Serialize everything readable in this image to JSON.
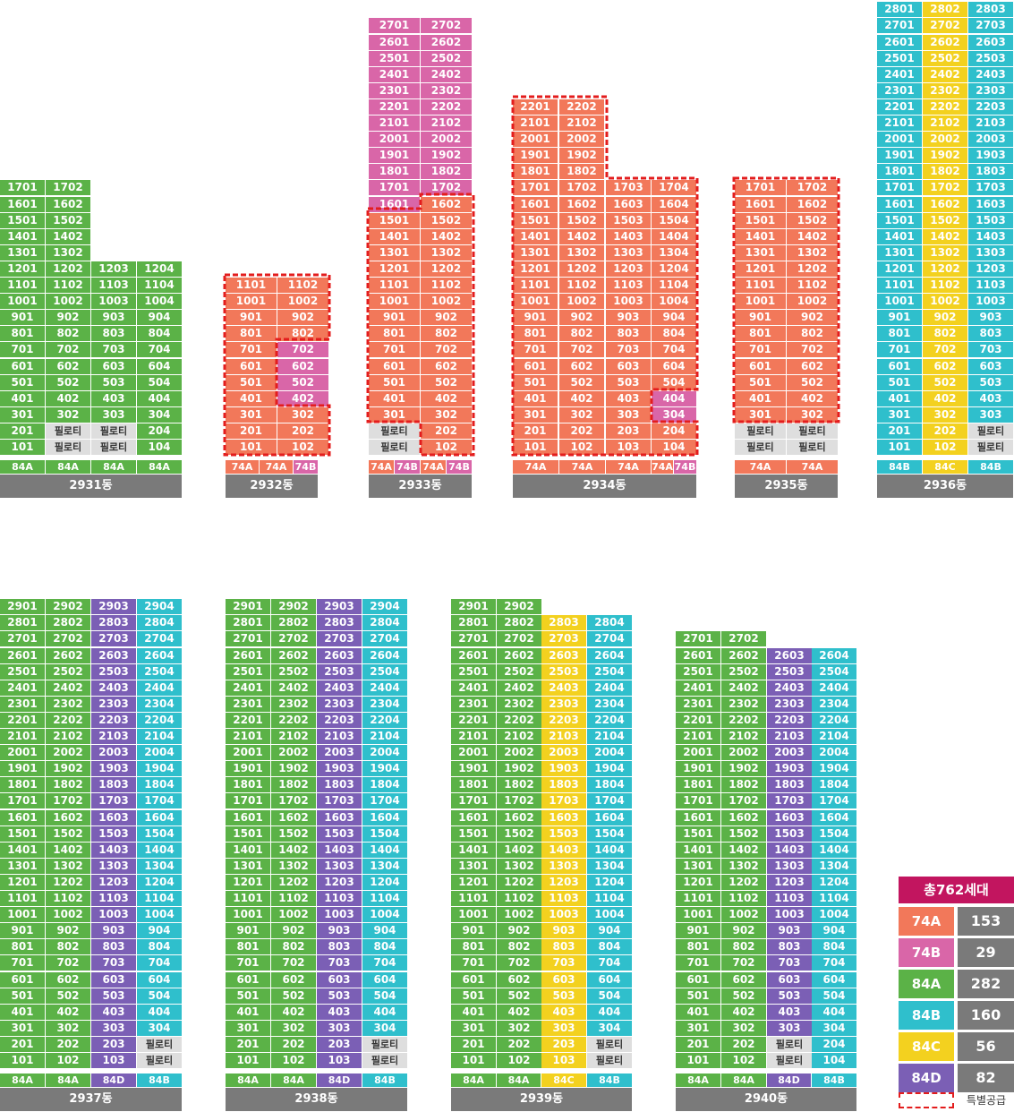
{
  "colors": {
    "74A": "#f2785a",
    "74B": "#d966a8",
    "84A": "#5bb247",
    "84B": "#2fbfcc",
    "84C": "#f3d11f",
    "84D": "#7b5fb5",
    "piloti": "#dedede",
    "building_label": "#7a7a7a",
    "total_title": "#c2155f",
    "special_border": "#e31d1d"
  },
  "piloti_text": "필로티",
  "buildings": [
    {
      "name": "2931동",
      "types": [
        "84A",
        "84A",
        "84A",
        "84A"
      ],
      "columns": [
        {
          "type": "84A",
          "floors": 17,
          "lines": "01",
          "piloti": []
        },
        {
          "type": "84A",
          "floors": 17,
          "lines": "02",
          "piloti": [
            1,
            2
          ]
        },
        {
          "type": "84A",
          "floors": 12,
          "lines": "03",
          "piloti": [
            1,
            2
          ]
        },
        {
          "type": "84A",
          "floors": 12,
          "lines": "04",
          "piloti": []
        }
      ]
    },
    {
      "name": "2932동",
      "types": [
        "74A",
        "74A",
        "74B"
      ],
      "columns": [
        {
          "type": "74A",
          "floors": 11,
          "lines": "01",
          "piloti": []
        },
        {
          "type": "74A",
          "floors": 11,
          "lines": "02",
          "piloti": [],
          "override": {
            "4": "74B",
            "5": "74B",
            "6": "74B",
            "7": "74B"
          }
        }
      ]
    },
    {
      "name": "2933동",
      "types": [
        "74A",
        "74B",
        "74A",
        "74B"
      ],
      "columns": [
        {
          "type": "74A",
          "floors": 27,
          "lines": "01",
          "piloti": [
            1,
            2
          ],
          "override": {
            "16": "74B",
            "17": "74B",
            "18": "74B",
            "19": "74B",
            "20": "74B",
            "21": "74B",
            "22": "74B",
            "23": "74B",
            "24": "74B",
            "25": "74B",
            "26": "74B",
            "27": "74B"
          }
        },
        {
          "type": "74A",
          "floors": 27,
          "lines": "02",
          "piloti": [],
          "override": {
            "17": "74B",
            "18": "74B",
            "19": "74B",
            "20": "74B",
            "21": "74B",
            "22": "74B",
            "23": "74B",
            "24": "74B",
            "25": "74B",
            "26": "74B",
            "27": "74B"
          }
        }
      ]
    },
    {
      "name": "2934동",
      "types": [
        "74A",
        "74A",
        "74A",
        "74A",
        "74B"
      ],
      "columns": [
        {
          "type": "74A",
          "floors": 22,
          "lines": "01",
          "piloti": []
        },
        {
          "type": "74A",
          "floors": 22,
          "lines": "02",
          "piloti": []
        },
        {
          "type": "74A",
          "floors": 17,
          "lines": "03",
          "piloti": []
        },
        {
          "type": "74A",
          "floors": 17,
          "lines": "04",
          "piloti": [],
          "override": {
            "3": "74B",
            "4": "74B"
          }
        }
      ]
    },
    {
      "name": "2935동",
      "types": [
        "74A",
        "74A"
      ],
      "columns": [
        {
          "type": "74A",
          "floors": 17,
          "lines": "01",
          "piloti": [
            1,
            2
          ]
        },
        {
          "type": "74A",
          "floors": 17,
          "lines": "02",
          "piloti": [
            1,
            2
          ]
        }
      ]
    },
    {
      "name": "2936동",
      "types": [
        "84B",
        "84C",
        "84B"
      ],
      "columns": [
        {
          "type": "84B",
          "floors": 28,
          "lines": "01",
          "piloti": []
        },
        {
          "type": "84C",
          "floors": 28,
          "lines": "02",
          "piloti": []
        },
        {
          "type": "84B",
          "floors": 28,
          "lines": "03",
          "piloti": [
            1,
            2
          ]
        }
      ]
    },
    {
      "name": "2937동",
      "types": [
        "84A",
        "84A",
        "84D",
        "84B"
      ],
      "columns": [
        {
          "type": "84A",
          "floors": 29,
          "lines": "01",
          "piloti": []
        },
        {
          "type": "84A",
          "floors": 29,
          "lines": "02",
          "piloti": []
        },
        {
          "type": "84D",
          "floors": 29,
          "lines": "03",
          "piloti": []
        },
        {
          "type": "84B",
          "floors": 29,
          "lines": "04",
          "piloti": [
            1,
            2
          ]
        }
      ]
    },
    {
      "name": "2938동",
      "types": [
        "84A",
        "84A",
        "84D",
        "84B"
      ],
      "columns": [
        {
          "type": "84A",
          "floors": 29,
          "lines": "01",
          "piloti": []
        },
        {
          "type": "84A",
          "floors": 29,
          "lines": "02",
          "piloti": []
        },
        {
          "type": "84D",
          "floors": 29,
          "lines": "03",
          "piloti": []
        },
        {
          "type": "84B",
          "floors": 29,
          "lines": "04",
          "piloti": [
            1,
            2
          ]
        }
      ]
    },
    {
      "name": "2939동",
      "types": [
        "84A",
        "84A",
        "84C",
        "84B"
      ],
      "columns": [
        {
          "type": "84A",
          "floors": 29,
          "lines": "01",
          "piloti": []
        },
        {
          "type": "84A",
          "floors": 29,
          "lines": "02",
          "piloti": []
        },
        {
          "type": "84C",
          "floors": 28,
          "lines": "03",
          "piloti": []
        },
        {
          "type": "84B",
          "floors": 28,
          "lines": "04",
          "piloti": [
            1,
            2
          ]
        }
      ]
    },
    {
      "name": "2940동",
      "types": [
        "84A",
        "84A",
        "84D",
        "84B"
      ],
      "columns": [
        {
          "type": "84A",
          "floors": 27,
          "lines": "01",
          "piloti": []
        },
        {
          "type": "84A",
          "floors": 27,
          "lines": "02",
          "piloti": []
        },
        {
          "type": "84D",
          "floors": 26,
          "lines": "03",
          "piloti": [
            1,
            2
          ]
        },
        {
          "type": "84B",
          "floors": 26,
          "lines": "04",
          "piloti": []
        }
      ]
    }
  ],
  "legend": {
    "title": "총762세대",
    "items": [
      {
        "type": "74A",
        "count": "153"
      },
      {
        "type": "74B",
        "count": "29"
      },
      {
        "type": "84A",
        "count": "282"
      },
      {
        "type": "84B",
        "count": "160"
      },
      {
        "type": "84C",
        "count": "56"
      },
      {
        "type": "84D",
        "count": "82"
      }
    ],
    "special_label": "특별공급"
  }
}
